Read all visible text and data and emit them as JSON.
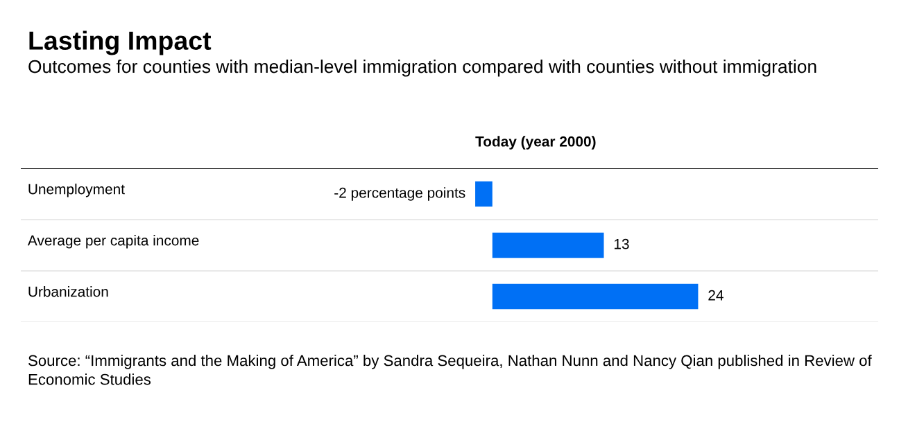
{
  "chart_data": {
    "type": "bar",
    "orientation": "horizontal",
    "title": "Lasting Impact",
    "subtitle": "Outcomes for counties with median-level immigration compared with counties without immigration",
    "xlabel": "Today (year 2000)",
    "categories": [
      "Unemployment",
      "Average per capita income",
      "Urbanization"
    ],
    "values": [
      -2,
      13,
      24
    ],
    "color": "#0070f5",
    "value_labels": [
      "-2 percentage points",
      "13",
      "24"
    ],
    "xlim": [
      -55,
      45
    ],
    "grid": "y",
    "tick_labels": false,
    "annotations": [
      "Source: “Immigrants and the Making of America” by Sandra Sequeira, Nathan Nunn and Nancy Qian published in Review of Economic Studies"
    ]
  }
}
